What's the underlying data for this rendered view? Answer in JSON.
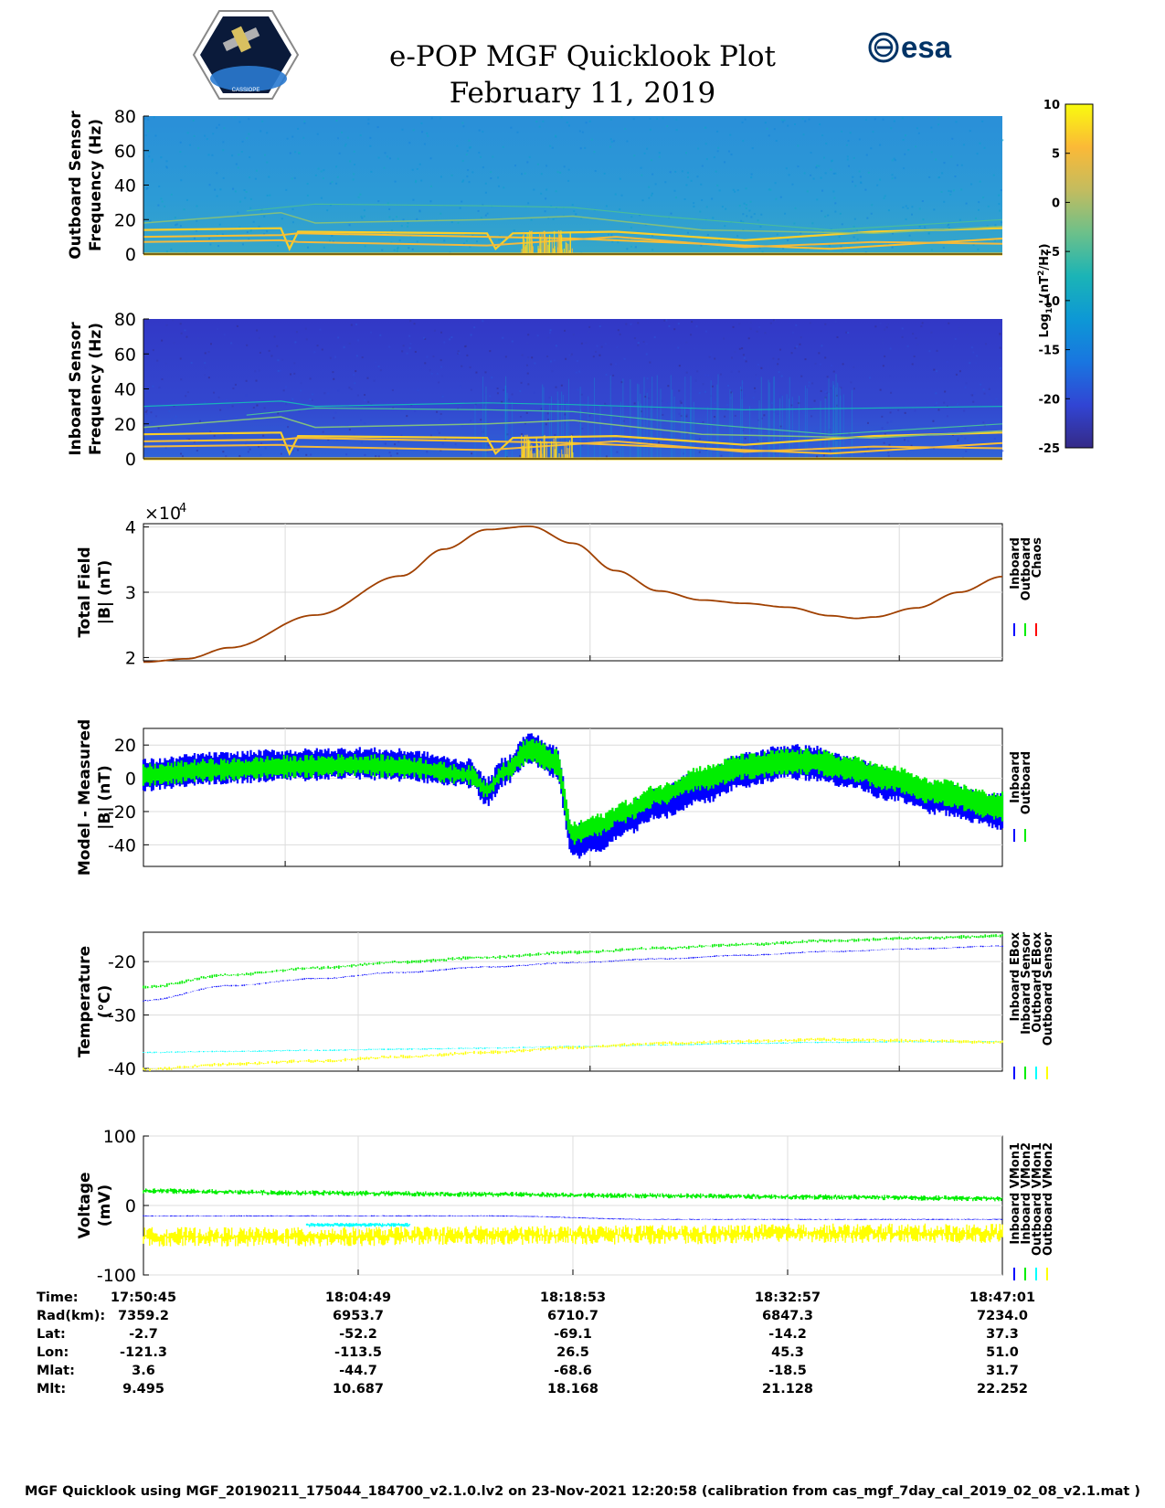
{
  "header": {
    "title": "e-POP MGF Quicklook Plot",
    "date": "February 11, 2019",
    "esa_logo_text": "esa",
    "cassiope_logo_text": "CASSIOPE"
  },
  "colorbar": {
    "label": "Log10 (nT2/Hz)",
    "label_parts": {
      "log": "Log",
      "sub": "10",
      "open": " (nT",
      "sup": "2",
      "close": "/Hz)"
    },
    "ticks": [
      10,
      5,
      0,
      -5,
      -10,
      -15,
      -20,
      -25
    ],
    "range": [
      -25,
      10
    ],
    "colors": [
      "#352a87",
      "#3145d4",
      "#1976e0",
      "#0d98d5",
      "#1bb4b6",
      "#6cc08a",
      "#c3bc5f",
      "#fbb937",
      "#f9fb0e"
    ]
  },
  "chart_data": [
    {
      "type": "heatmap",
      "id": "outboard",
      "ylabel_line1": "Outboard Sensor",
      "ylabel_line2": "Frequency (Hz)",
      "ylim": [
        0,
        80
      ],
      "yticks": [
        0,
        20,
        40,
        60,
        80
      ],
      "background_level": -12,
      "line_level": 7,
      "note": "Spectrogram: frequency vs time, color = power (log10 nT^2/Hz)"
    },
    {
      "type": "heatmap",
      "id": "inboard",
      "ylabel_line1": "Inboard Sensor",
      "ylabel_line2": "Frequency (Hz)",
      "ylim": [
        0,
        80
      ],
      "yticks": [
        0,
        20,
        40,
        60,
        80
      ],
      "background_level": -22,
      "line_level": 7,
      "note": "Spectrogram: frequency vs time, color = power (log10 nT^2/Hz)"
    },
    {
      "type": "line",
      "id": "total_field",
      "ylabel_line1": "Total Field",
      "ylabel_line2": "|B| (nT)",
      "ylim": [
        19500,
        40500
      ],
      "yticks": [
        20000,
        30000,
        40000
      ],
      "ytick_labels": [
        "2",
        "3",
        "4"
      ],
      "exponent_label": "×10",
      "exponent": "4",
      "x": [
        0,
        0.05,
        0.1,
        0.2,
        0.3,
        0.35,
        0.4,
        0.45,
        0.5,
        0.55,
        0.6,
        0.65,
        0.7,
        0.75,
        0.8,
        0.83,
        0.85,
        0.9,
        0.95,
        1.0
      ],
      "series": [
        {
          "name": "Inboard",
          "color": "#0000ff",
          "values": [
            19300,
            19800,
            21500,
            26500,
            32500,
            36600,
            39600,
            40100,
            37500,
            33300,
            30200,
            28800,
            28300,
            27700,
            26400,
            26000,
            26200,
            27600,
            30000,
            32400
          ]
        },
        {
          "name": "Outboard",
          "color": "#00ee00",
          "values": [
            19300,
            19800,
            21500,
            26500,
            32500,
            36600,
            39600,
            40100,
            37500,
            33300,
            30200,
            28800,
            28300,
            27700,
            26400,
            26000,
            26200,
            27600,
            30000,
            32400
          ]
        },
        {
          "name": "Chaos",
          "color": "#ff0000",
          "values": [
            19300,
            19800,
            21500,
            26500,
            32500,
            36600,
            39600,
            40100,
            37500,
            33300,
            30200,
            28800,
            28300,
            27700,
            26400,
            26000,
            26200,
            27600,
            30000,
            32400
          ]
        }
      ],
      "legend": [
        "Inboard",
        "Outboard",
        "Chaos"
      ],
      "plotted_color": "#a04000"
    },
    {
      "type": "line",
      "id": "model_measured",
      "ylabel_line1": "Model - Measured",
      "ylabel_line2": "|B| (nT)",
      "ylim": [
        -53,
        30
      ],
      "yticks": [
        -40,
        -20,
        0,
        20
      ],
      "x": [
        0,
        0.08,
        0.17,
        0.25,
        0.3,
        0.38,
        0.4,
        0.42,
        0.45,
        0.48,
        0.5,
        0.53,
        0.56,
        0.6,
        0.65,
        0.7,
        0.75,
        0.78,
        0.82,
        0.87,
        0.92,
        1.0
      ],
      "series": [
        {
          "name": "Inboard",
          "color": "#0000ff",
          "center": [
            2,
            6,
            8,
            9,
            8,
            3,
            -8,
            4,
            18,
            10,
            -38,
            -35,
            -25,
            -15,
            -5,
            5,
            10,
            9,
            4,
            -4,
            -12,
            -20
          ],
          "halfwidth": [
            8,
            8,
            8,
            8,
            8,
            7,
            7,
            7,
            8,
            8,
            9,
            8,
            8,
            8,
            9,
            9,
            9,
            9,
            8,
            8,
            8,
            9
          ]
        },
        {
          "name": "Outboard",
          "color": "#00ee00",
          "center": [
            2,
            5,
            7,
            8,
            7,
            2,
            -7,
            4,
            17,
            10,
            -33,
            -28,
            -20,
            -10,
            0,
            7,
            10,
            10,
            6,
            0,
            -8,
            -17
          ],
          "halfwidth": [
            5,
            5,
            5,
            5,
            5,
            4,
            4,
            4,
            6,
            6,
            5,
            5,
            5,
            5,
            6,
            6,
            6,
            6,
            6,
            6,
            6,
            7
          ]
        }
      ],
      "legend": [
        "Inboard",
        "Outboard"
      ]
    },
    {
      "type": "line",
      "id": "temperature",
      "ylabel_line1": "Temperature",
      "ylabel_line2": "(°C)",
      "ylim": [
        -40.5,
        -14.5
      ],
      "yticks": [
        -40,
        -30,
        -20
      ],
      "x": [
        0,
        0.1,
        0.2,
        0.3,
        0.4,
        0.5,
        0.6,
        0.7,
        0.8,
        0.9,
        1.0
      ],
      "series": [
        {
          "name": "Inboard EBox",
          "color": "#0000ff",
          "values": [
            -27.3,
            -24.5,
            -23.2,
            -22.0,
            -21.0,
            -20.2,
            -19.5,
            -18.8,
            -18.1,
            -17.6,
            -17.1
          ]
        },
        {
          "name": "Inboard Sensor",
          "color": "#00ee00",
          "values": [
            -24.8,
            -22.5,
            -21.2,
            -20.1,
            -19.2,
            -18.3,
            -17.5,
            -16.8,
            -16.1,
            -15.6,
            -15.2
          ]
        },
        {
          "name": "Outboard EBox",
          "color": "#00ffff",
          "values": [
            -37.0,
            -36.8,
            -36.6,
            -36.4,
            -36.2,
            -35.9,
            -35.6,
            -35.3,
            -35.1,
            -35.0,
            -35.0
          ]
        },
        {
          "name": "Outboard Sensor",
          "color": "#ffff00",
          "values": [
            -40.2,
            -39.2,
            -38.6,
            -37.8,
            -37.0,
            -36.1,
            -35.3,
            -34.9,
            -34.6,
            -34.8,
            -35.1
          ]
        }
      ],
      "legend": [
        "Inboard EBox",
        "Inboard Sensor",
        "Outboard EBox",
        "Outboard Sensor"
      ]
    },
    {
      "type": "line",
      "id": "voltage",
      "ylabel_line1": "Voltage",
      "ylabel_line2": "(mV)",
      "ylim": [
        -100,
        100
      ],
      "yticks": [
        -100,
        0,
        100
      ],
      "x": [
        0,
        0.2,
        0.4,
        0.6,
        0.8,
        1.0
      ],
      "series": [
        {
          "name": "Inboard VMon1",
          "color": "#0000ff",
          "values": [
            -15,
            -15,
            -15,
            -20,
            -20,
            -20
          ]
        },
        {
          "name": "Inboard VMon2",
          "color": "#00ee00",
          "values": [
            21,
            18,
            16,
            14,
            12,
            10
          ]
        },
        {
          "name": "Outboard VMon1",
          "color": "#00ffff",
          "values": [
            -30,
            -28,
            -28,
            -28,
            -28,
            -28
          ]
        },
        {
          "name": "Outboard VMon2",
          "color": "#ffff00",
          "values": [
            -45,
            -45,
            -43,
            -42,
            -40,
            -40
          ]
        }
      ],
      "legend": [
        "Inboard VMon1",
        "Inboard VMon2",
        "Outboard VMon1",
        "Outboard VMon2"
      ]
    }
  ],
  "ephemeris": {
    "row_labels": [
      "Time:",
      "Rad(km):",
      "Lat:",
      "Lon:",
      "Mlat:",
      "Mlt:"
    ],
    "columns": [
      [
        "17:50:45",
        "7359.2",
        "-2.7",
        "-121.3",
        "3.6",
        "9.495"
      ],
      [
        "18:04:49",
        "6953.7",
        "-52.2",
        "-113.5",
        "-44.7",
        "10.687"
      ],
      [
        "18:18:53",
        "6710.7",
        "-69.1",
        "26.5",
        "-68.6",
        "18.168"
      ],
      [
        "18:32:57",
        "6847.3",
        "-14.2",
        "45.3",
        "-18.5",
        "21.128"
      ],
      [
        "18:47:01",
        "7234.0",
        "37.3",
        "51.0",
        "31.7",
        "22.252"
      ]
    ]
  },
  "footer": "MGF Quicklook using MGF_20190211_175044_184700_v2.1.0.lv2 on 23-Nov-2021 12:20:58 (calibration from cas_mgf_7day_cal_2019_02_08_v2.1.mat )"
}
